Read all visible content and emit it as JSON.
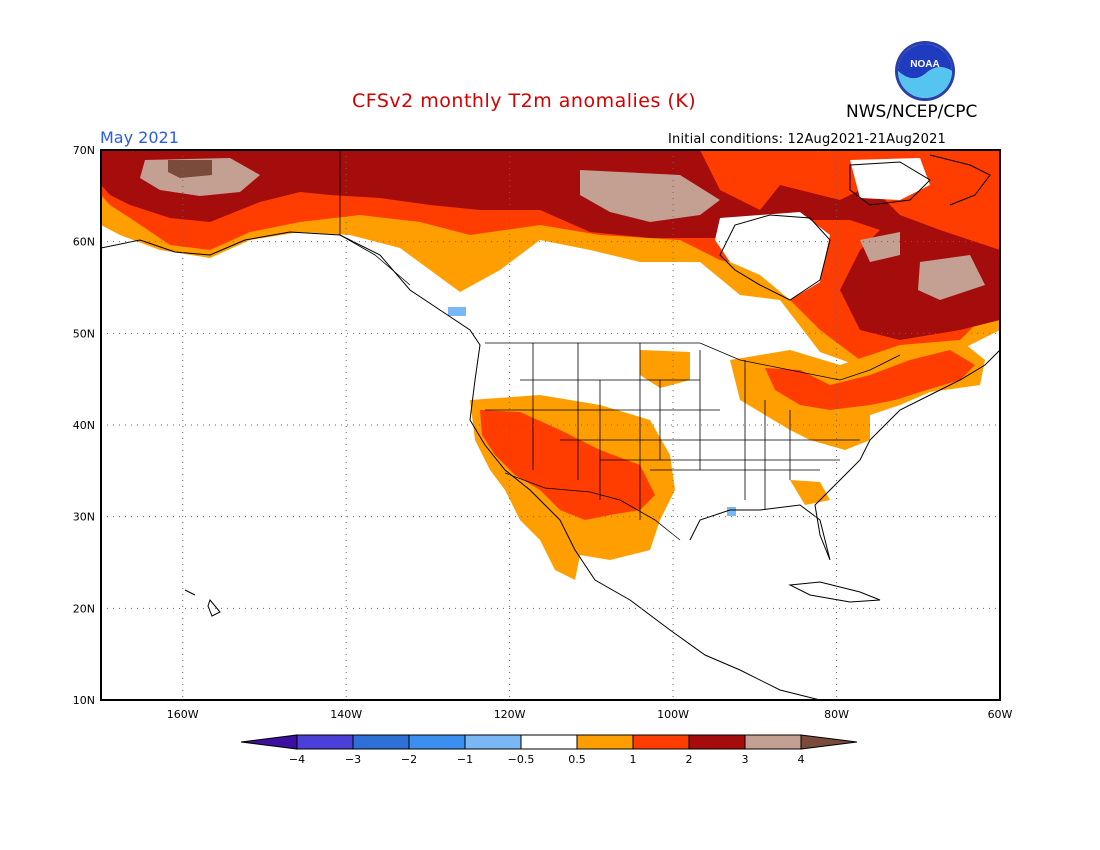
{
  "title": "CFSv2 monthly T2m anomalies (K)",
  "agency": "NWS/NCEP/CPC",
  "logo_text": "NOAA",
  "target_month": "May 2021",
  "initial_conditions": "Initial conditions: 12Aug2021-21Aug2021",
  "map": {
    "projection": "lat-lon",
    "lon_range": [
      -170,
      -60
    ],
    "lat_range": [
      10,
      70
    ],
    "lat_ticks": [
      "10N",
      "20N",
      "30N",
      "40N",
      "50N",
      "60N",
      "70N"
    ],
    "lon_ticks": [
      "160W",
      "140W",
      "120W",
      "100W",
      "80W",
      "60W"
    ],
    "grid": "dotted"
  },
  "colorbar": {
    "ticks": [
      "-4",
      "-3",
      "-2",
      "-1",
      "-0.5",
      "0.5",
      "1",
      "2",
      "3",
      "4"
    ],
    "colors": [
      "#3b0fa0",
      "#4a3fd6",
      "#2e6fd8",
      "#3c8ff0",
      "#7ab8f5",
      "#ffffff",
      "#ff9e00",
      "#ff3d00",
      "#a50d0d",
      "#c4a093",
      "#7a4a3a"
    ]
  },
  "anomaly_categories": {
    "0.5_to_1": "#ff9e00",
    "1_to_2": "#ff3d00",
    "2_to_3": "#a50d0d",
    "3_to_4": "#c4a093",
    "above_4": "#7a4a3a",
    "-1_to_-0.5": "#7ab8f5"
  }
}
